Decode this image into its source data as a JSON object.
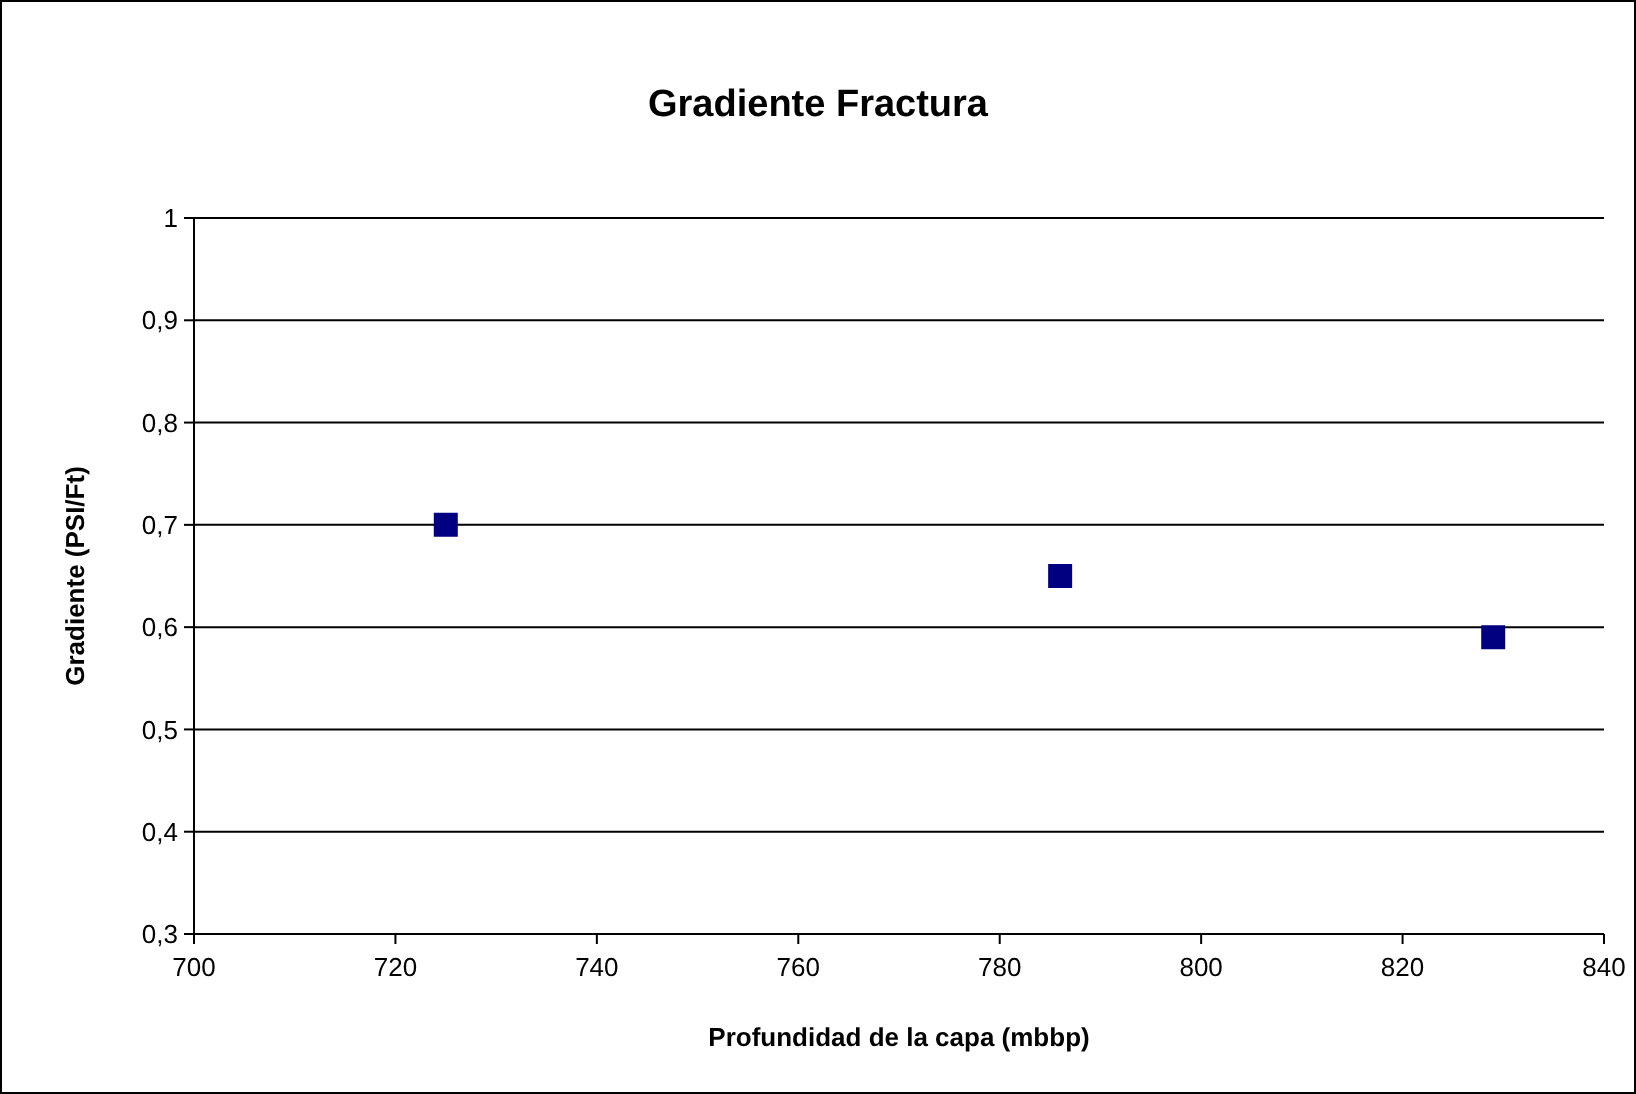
{
  "chart_data": {
    "type": "scatter",
    "title": "Gradiente Fractura",
    "xlabel": "Profundidad de la capa (mbbp)",
    "ylabel": "Gradiente (PSI/Ft)",
    "x": [
      725,
      786,
      829
    ],
    "series": [
      {
        "color": "#000080",
        "values": [
          0.7,
          0.65,
          0.59
        ]
      }
    ],
    "xlim": [
      700,
      840
    ],
    "xticks": [
      700,
      720,
      740,
      760,
      780,
      800,
      820,
      840
    ],
    "ylim": [
      0.3,
      1
    ],
    "yticks": [
      {
        "value": 0.3,
        "label": "0,3"
      },
      {
        "value": 0.4,
        "label": "0,4"
      },
      {
        "value": 0.5,
        "label": "0,5"
      },
      {
        "value": 0.6,
        "label": "0,6"
      },
      {
        "value": 0.7,
        "label": "0,7"
      },
      {
        "value": 0.8,
        "label": "0,8"
      },
      {
        "value": 0.9,
        "label": "0,9"
      },
      {
        "value": 1,
        "label": "1"
      }
    ],
    "grid": "y",
    "marker": "square"
  }
}
